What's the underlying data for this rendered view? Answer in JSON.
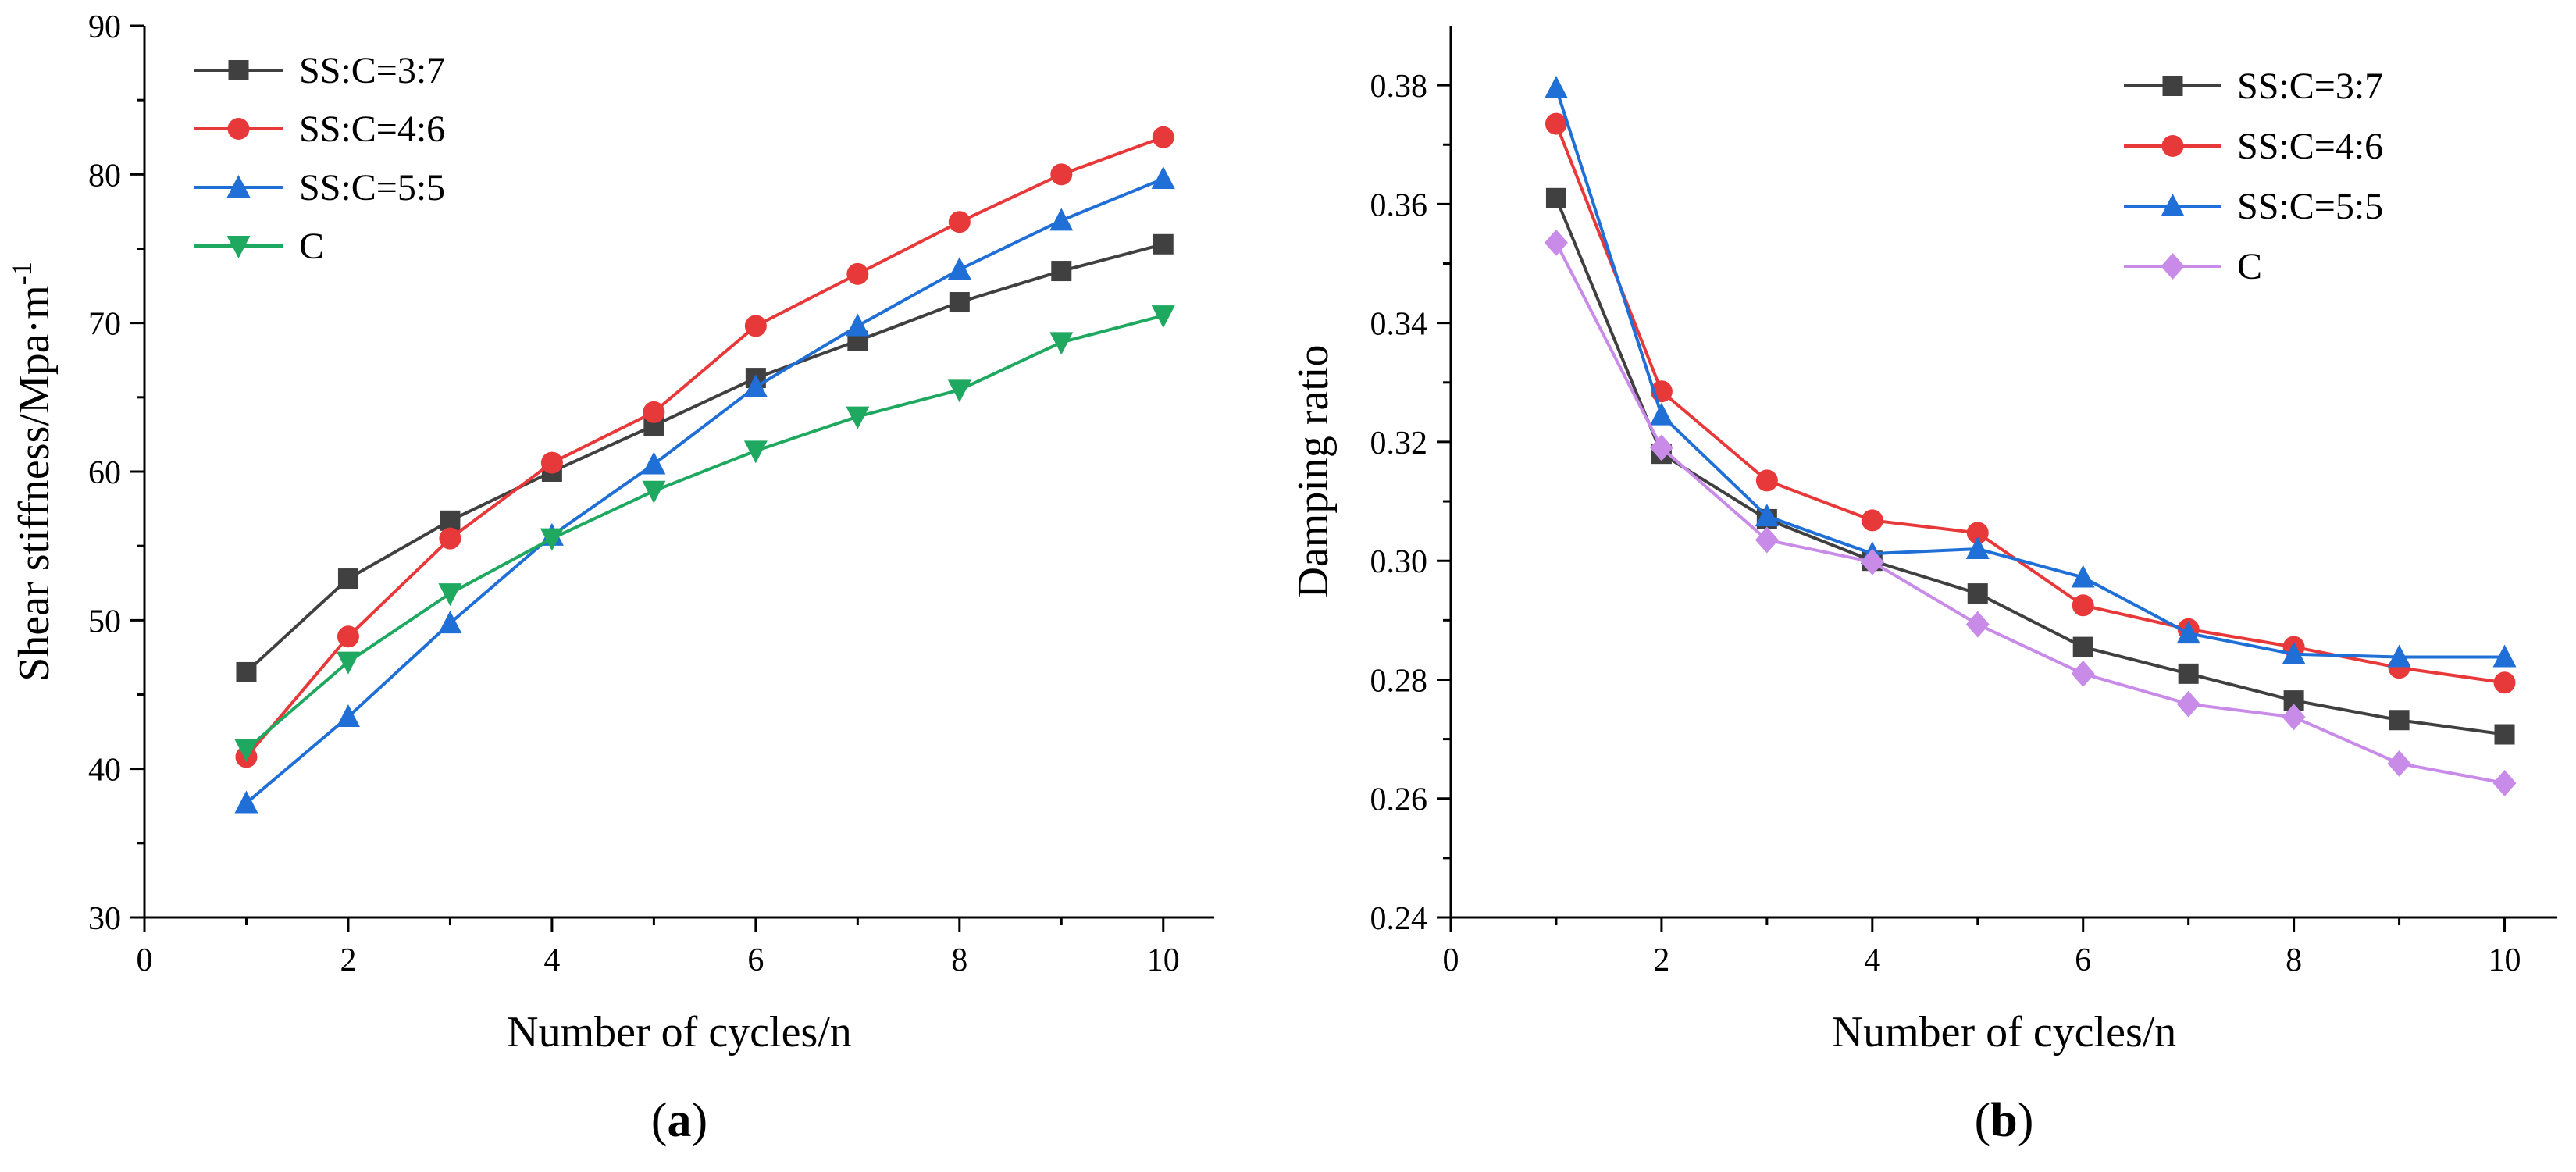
{
  "chart_data": [
    {
      "panel_label": "(a)",
      "type": "line",
      "xlabel": "Number of cycles/n",
      "ylabel": "Shear stiffness/Mpa·m",
      "ylabel_superscript": "-1",
      "xlim": [
        0,
        10.5
      ],
      "ylim": [
        30,
        90
      ],
      "xticks": [
        0,
        2,
        4,
        6,
        8,
        10
      ],
      "yticks": [
        30,
        40,
        50,
        60,
        70,
        80,
        90
      ],
      "legend_position": "top-left",
      "x": [
        1,
        2,
        3,
        4,
        5,
        6,
        7,
        8,
        9,
        10
      ],
      "series": [
        {
          "name": "SS:C=3:7",
          "color": "#404040",
          "marker": "square",
          "values": [
            46.5,
            52.8,
            56.7,
            60.0,
            63.1,
            66.3,
            68.8,
            71.4,
            73.5,
            75.3
          ]
        },
        {
          "name": "SS:C=4:6",
          "color": "#e8393a",
          "marker": "circle",
          "values": [
            40.8,
            48.9,
            55.5,
            60.6,
            64.0,
            69.8,
            73.3,
            76.8,
            80.0,
            82.5
          ]
        },
        {
          "name": "SS:C=5:5",
          "color": "#1f6fd6",
          "marker": "triangle-up",
          "values": [
            37.7,
            43.5,
            49.8,
            55.7,
            60.5,
            65.7,
            69.8,
            73.6,
            76.9,
            79.7
          ]
        },
        {
          "name": "C",
          "color": "#1fa85f",
          "marker": "triangle-down",
          "values": [
            41.3,
            47.2,
            51.8,
            55.5,
            58.7,
            61.4,
            63.7,
            65.5,
            68.7,
            70.5
          ]
        }
      ]
    },
    {
      "panel_label": "(b)",
      "type": "line",
      "xlabel": "Number of cycles/n",
      "ylabel": "Damping ratio",
      "xlim": [
        0,
        10.5
      ],
      "ylim": [
        0.24,
        0.39
      ],
      "xticks": [
        0,
        2,
        4,
        6,
        8,
        10
      ],
      "yticks": [
        0.24,
        0.26,
        0.28,
        0.3,
        0.32,
        0.34,
        0.36,
        0.38
      ],
      "ytick_labels": [
        "0.24",
        "0.26",
        "0.28",
        "0.30",
        "0.32",
        "0.34",
        "0.36",
        "0.38"
      ],
      "legend_position": "top-right",
      "x": [
        1,
        2,
        3,
        4,
        5,
        6,
        7,
        8,
        9,
        10
      ],
      "series": [
        {
          "name": "SS:C=3:7",
          "color": "#404040",
          "marker": "square",
          "values": [
            0.361,
            0.318,
            0.307,
            0.3,
            0.2945,
            0.2855,
            0.281,
            0.2765,
            0.2732,
            0.2708
          ]
        },
        {
          "name": "SS:C=4:6",
          "color": "#e8393a",
          "marker": "circle",
          "values": [
            0.3735,
            0.3285,
            0.3135,
            0.3068,
            0.3047,
            0.2925,
            0.2885,
            0.2855,
            0.282,
            0.2795
          ]
        },
        {
          "name": "SS:C=5:5",
          "color": "#1f6fd6",
          "marker": "triangle-up",
          "values": [
            0.3795,
            0.3245,
            0.3075,
            0.3012,
            0.302,
            0.2972,
            0.2878,
            0.2843,
            0.2838,
            0.2838
          ]
        },
        {
          "name": "C",
          "color": "#c98be8",
          "marker": "diamond",
          "values": [
            0.3535,
            0.319,
            0.3035,
            0.2998,
            0.2893,
            0.281,
            0.2759,
            0.2737,
            0.2659,
            0.2626
          ]
        }
      ]
    }
  ]
}
